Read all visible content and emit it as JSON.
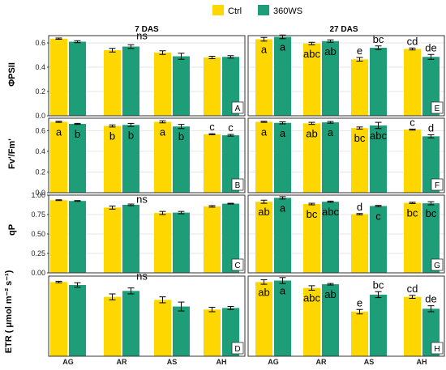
{
  "legend": {
    "items": [
      {
        "label": "Ctrl",
        "color": "#FFD700"
      },
      {
        "label": "360WS",
        "color": "#1E9E78"
      }
    ]
  },
  "facets": [
    "7 DAS",
    "27 DAS"
  ],
  "categories": [
    "AG",
    "AR",
    "AS",
    "AH"
  ],
  "colors": {
    "ctrl": "#FFD700",
    "ws": "#1E9E78",
    "grid": "#e6e6e6",
    "border": "#333333"
  },
  "chart_data": [
    {
      "type": "bar",
      "panel": "A",
      "facet": "7 DAS",
      "ylabel": "ΦPSII",
      "ylim": [
        0,
        0.66
      ],
      "yticks": [
        "0.0",
        "0.2",
        "0.4",
        "0.6"
      ],
      "ytick_values": [
        0,
        0.2,
        0.4,
        0.6
      ],
      "categories": [
        "AG",
        "AR",
        "AS",
        "AH"
      ],
      "series": [
        {
          "name": "Ctrl",
          "values": [
            0.635,
            0.54,
            0.52,
            0.48
          ],
          "errors": [
            0.005,
            0.015,
            0.015,
            0.01
          ]
        },
        {
          "name": "360WS",
          "values": [
            0.61,
            0.57,
            0.49,
            0.485
          ],
          "errors": [
            0.008,
            0.015,
            0.025,
            0.01
          ]
        }
      ],
      "annotations": [
        {
          "text": "ns",
          "category": "AR",
          "y": 0.63
        }
      ],
      "labels": []
    },
    {
      "type": "bar",
      "panel": "E",
      "facet": "27 DAS",
      "ylabel": "ΦPSII",
      "ylim": [
        0,
        0.66
      ],
      "yticks": [
        "0.0",
        "0.2",
        "0.4",
        "0.6"
      ],
      "ytick_values": [
        0,
        0.2,
        0.4,
        0.6
      ],
      "categories": [
        "AG",
        "AR",
        "AS",
        "AH"
      ],
      "series": [
        {
          "name": "Ctrl",
          "values": [
            0.63,
            0.595,
            0.465,
            0.55
          ],
          "errors": [
            0.015,
            0.01,
            0.015,
            0.008
          ]
        },
        {
          "name": "360WS",
          "values": [
            0.65,
            0.615,
            0.56,
            0.485
          ],
          "errors": [
            0.015,
            0.01,
            0.015,
            0.02
          ]
        }
      ],
      "annotations": [],
      "labels": [
        [
          "a",
          "a"
        ],
        [
          "abc",
          "ab"
        ],
        [
          "e",
          "bc"
        ],
        [
          "cd",
          "de"
        ]
      ]
    },
    {
      "type": "bar",
      "panel": "B",
      "facet": "7 DAS",
      "ylabel": "Fv'/Fm'",
      "ylim": [
        0,
        0.72
      ],
      "yticks": [
        "0.0",
        "0.2",
        "0.4",
        "0.6"
      ],
      "ytick_values": [
        0,
        0.2,
        0.4,
        0.6
      ],
      "categories": [
        "AG",
        "AR",
        "AS",
        "AH"
      ],
      "series": [
        {
          "name": "Ctrl",
          "values": [
            0.685,
            0.645,
            0.685,
            0.565
          ],
          "errors": [
            0.005,
            0.01,
            0.01,
            0.005
          ]
        },
        {
          "name": "360WS",
          "values": [
            0.665,
            0.655,
            0.64,
            0.555
          ],
          "errors": [
            0.005,
            0.015,
            0.02,
            0.008
          ]
        }
      ],
      "annotations": [],
      "labels": [
        [
          "a",
          "b"
        ],
        [
          "b",
          "b"
        ],
        [
          "a",
          "b"
        ],
        [
          "c",
          "c"
        ]
      ]
    },
    {
      "type": "bar",
      "panel": "F",
      "facet": "27 DAS",
      "ylabel": "Fv'/Fm'",
      "ylim": [
        0,
        0.72
      ],
      "yticks": [
        "0.0",
        "0.2",
        "0.4",
        "0.6"
      ],
      "ytick_values": [
        0,
        0.2,
        0.4,
        0.6
      ],
      "categories": [
        "AG",
        "AR",
        "AS",
        "AH"
      ],
      "series": [
        {
          "name": "Ctrl",
          "values": [
            0.685,
            0.67,
            0.625,
            0.61
          ],
          "errors": [
            0.005,
            0.01,
            0.01,
            0.005
          ]
        },
        {
          "name": "360WS",
          "values": [
            0.675,
            0.68,
            0.65,
            0.545
          ],
          "errors": [
            0.01,
            0.008,
            0.03,
            0.015
          ]
        }
      ],
      "annotations": [],
      "labels": [
        [
          "a",
          "a"
        ],
        [
          "ab",
          "a"
        ],
        [
          "bc",
          "abc"
        ],
        [
          "c",
          "d"
        ]
      ]
    },
    {
      "type": "bar",
      "panel": "C",
      "facet": "7 DAS",
      "ylabel": "qP",
      "ylim": [
        0,
        1.0
      ],
      "yticks": [
        "0.00",
        "0.25",
        "0.50",
        "0.75",
        "1.00"
      ],
      "ytick_values": [
        0,
        0.25,
        0.5,
        0.75,
        1.0
      ],
      "categories": [
        "AG",
        "AR",
        "AS",
        "AH"
      ],
      "series": [
        {
          "name": "Ctrl",
          "values": [
            0.935,
            0.84,
            0.77,
            0.855
          ],
          "errors": [
            0.005,
            0.02,
            0.02,
            0.01
          ]
        },
        {
          "name": "360WS",
          "values": [
            0.925,
            0.875,
            0.775,
            0.89
          ],
          "errors": [
            0.005,
            0.01,
            0.015,
            0.005
          ]
        }
      ],
      "annotations": [
        {
          "text": "ns",
          "category": "AR",
          "y": 0.9
        }
      ],
      "labels": []
    },
    {
      "type": "bar",
      "panel": "G",
      "facet": "27 DAS",
      "ylabel": "qP",
      "ylim": [
        0,
        1.0
      ],
      "yticks": [
        "0.00",
        "0.25",
        "0.50",
        "0.75",
        "1.00"
      ],
      "ytick_values": [
        0,
        0.25,
        0.5,
        0.75,
        1.0
      ],
      "categories": [
        "AG",
        "AR",
        "AS",
        "AH"
      ],
      "series": [
        {
          "name": "Ctrl",
          "values": [
            0.915,
            0.885,
            0.755,
            0.9
          ],
          "errors": [
            0.02,
            0.01,
            0.008,
            0.008
          ]
        },
        {
          "name": "360WS",
          "values": [
            0.965,
            0.915,
            0.86,
            0.895
          ],
          "errors": [
            0.015,
            0.008,
            0.008,
            0.02
          ]
        }
      ],
      "annotations": [],
      "labels": [
        [
          "ab",
          "a"
        ],
        [
          "bc",
          "abc"
        ],
        [
          "d",
          "c"
        ],
        [
          "bc",
          "bc"
        ]
      ]
    },
    {
      "type": "bar",
      "panel": "D",
      "facet": "7 DAS",
      "ylabel": "ETR ( μmol m⁻² s⁻¹)",
      "ylim": [
        0,
        1.08
      ],
      "yticks": [],
      "ytick_values": [],
      "categories": [
        "AG",
        "AR",
        "AS",
        "AH"
      ],
      "series": [
        {
          "name": "Ctrl",
          "values": [
            1.0,
            0.8,
            0.76,
            0.63
          ],
          "errors": [
            0.01,
            0.04,
            0.04,
            0.03
          ]
        },
        {
          "name": "360WS",
          "values": [
            0.96,
            0.88,
            0.67,
            0.65
          ],
          "errors": [
            0.03,
            0.04,
            0.06,
            0.02
          ]
        }
      ],
      "annotations": [
        {
          "text": "ns",
          "category": "AR",
          "y": 1.03
        }
      ],
      "labels": []
    },
    {
      "type": "bar",
      "panel": "H",
      "facet": "27 DAS",
      "ylabel": "ETR ( μmol m⁻² s⁻¹)",
      "ylim": [
        0,
        1.08
      ],
      "yticks": [],
      "ytick_values": [],
      "categories": [
        "AG",
        "AR",
        "AS",
        "AH"
      ],
      "series": [
        {
          "name": "Ctrl",
          "values": [
            1.0,
            0.92,
            0.6,
            0.8
          ],
          "errors": [
            0.03,
            0.03,
            0.03,
            0.02
          ]
        },
        {
          "name": "360WS",
          "values": [
            1.02,
            0.97,
            0.83,
            0.64
          ],
          "errors": [
            0.04,
            0.01,
            0.04,
            0.04
          ]
        }
      ],
      "annotations": [],
      "labels": [
        [
          "ab",
          "a"
        ],
        [
          "abc",
          "ab"
        ],
        [
          "e",
          "bc"
        ],
        [
          "cd",
          "de"
        ]
      ]
    }
  ]
}
